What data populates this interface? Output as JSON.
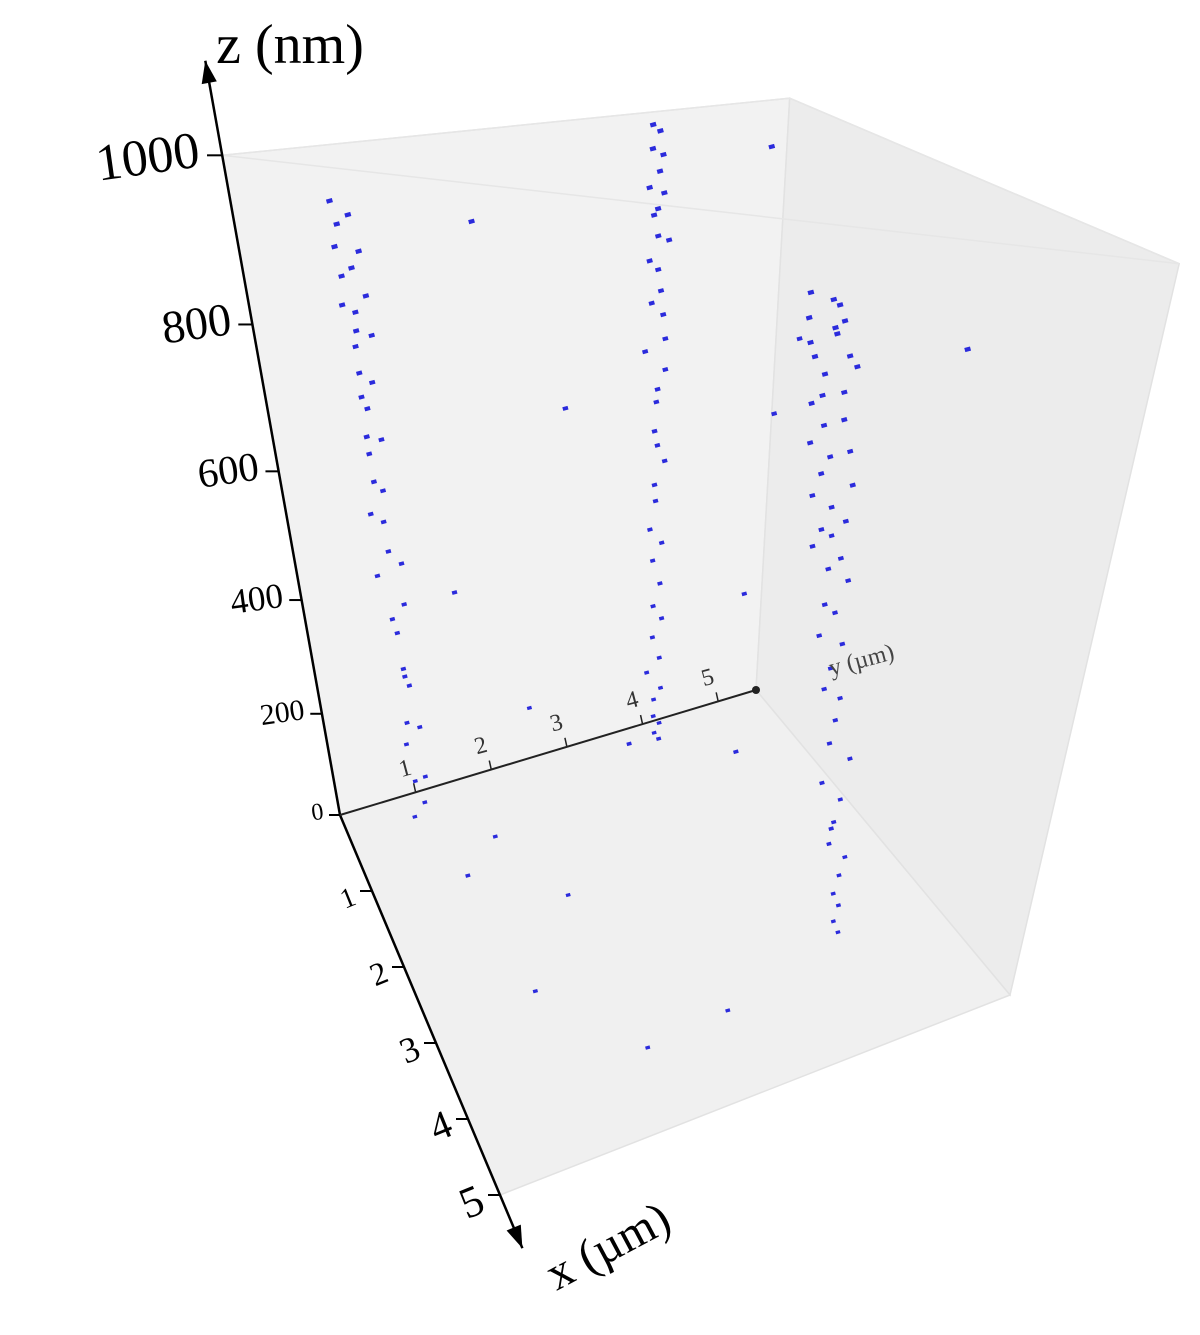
{
  "chart_data": {
    "type": "scatter3d",
    "zlabel": "z (nm)",
    "xlabel": "x (µm)",
    "ylabel": "y (µm)",
    "xlim": [
      0,
      5
    ],
    "ylim": [
      0,
      5.5
    ],
    "zlim": [
      0,
      1000
    ],
    "xticks": [
      1,
      2,
      3,
      4,
      5
    ],
    "yticks": [
      1,
      2,
      3,
      4,
      5
    ],
    "zticks": [
      0,
      200,
      400,
      600,
      800,
      1000
    ],
    "series": [
      {
        "color": "#2b2bdc",
        "x": [
          0.35,
          0.42,
          0.28,
          0.51,
          0.38,
          0.45,
          0.31,
          0.55,
          0.4,
          0.33,
          0.47,
          0.36,
          0.29,
          0.52,
          0.44,
          0.39,
          0.34,
          0.58,
          0.41,
          0.3,
          0.49,
          0.37,
          0.43,
          0.32,
          0.54,
          0.46,
          0.27,
          0.5,
          0.4,
          0.35,
          0.62,
          0.48,
          0.38,
          0.56,
          0.44,
          0.33,
          0.6,
          0.42,
          0.52,
          0.47,
          0.3,
          0.25,
          0.38,
          0.22,
          0.33,
          0.41,
          0.27,
          0.35,
          0.2,
          0.44,
          0.29,
          0.36,
          0.24,
          0.39,
          0.31,
          0.28,
          0.42,
          0.26,
          0.34,
          0.37,
          0.23,
          0.4,
          0.32,
          0.29,
          0.35,
          0.27,
          0.38,
          0.31,
          0.25,
          0.33,
          0.36,
          0.3,
          0.28,
          0.34,
          0.26,
          0.32,
          0.29,
          0.35,
          0.31,
          0.27,
          2.25,
          2.45,
          2.2,
          2.38,
          2.52,
          2.28,
          2.4,
          2.33,
          2.55,
          2.3,
          2.47,
          2.36,
          2.6,
          2.42,
          2.35,
          2.58,
          2.44,
          2.5,
          2.62,
          2.48,
          2.55,
          2.66,
          2.52,
          2.6,
          2.7,
          2.58,
          2.65,
          2.74,
          2.68,
          2.72,
          2.8,
          2.76,
          2.85,
          2.82,
          2.9,
          2.95,
          2.92,
          3.0,
          3.05,
          3.1,
          3.08,
          3.15,
          3.2,
          3.25,
          3.28,
          3.32,
          3.36,
          3.4,
          3.45,
          3.48,
          0.1,
          0.2,
          1.2,
          2.0,
          0.5,
          1.5,
          3.5,
          4.2,
          0.3,
          1.8,
          2.8,
          0.4,
          3.0,
          4.5,
          1.0,
          0.2,
          2.2,
          3.8,
          0.6,
          1.4
        ],
        "y": [
          0.82,
          0.95,
          0.88,
          0.76,
          1.02,
          0.91,
          0.85,
          0.98,
          0.79,
          0.93,
          0.87,
          1.05,
          0.9,
          0.83,
          0.97,
          0.86,
          0.92,
          0.8,
          1.0,
          0.89,
          0.84,
          0.96,
          0.78,
          0.94,
          0.88,
          1.03,
          0.81,
          0.99,
          0.87,
          0.92,
          0.85,
          0.9,
          0.97,
          0.83,
          1.01,
          0.86,
          0.95,
          0.88,
          0.93,
          0.8,
          3.95,
          4.05,
          3.9,
          4.1,
          4.0,
          3.85,
          4.08,
          3.97,
          4.02,
          3.92,
          4.12,
          3.88,
          4.04,
          3.98,
          3.93,
          4.07,
          4.01,
          3.89,
          4.06,
          3.96,
          4.03,
          3.91,
          3.99,
          4.09,
          3.94,
          4.0,
          3.87,
          4.05,
          3.98,
          4.02,
          3.92,
          4.06,
          3.96,
          4.01,
          3.9,
          4.04,
          3.97,
          3.93,
          4.03,
          3.99,
          4.3,
          4.45,
          4.55,
          4.22,
          4.38,
          4.62,
          4.48,
          4.28,
          4.52,
          4.35,
          4.65,
          4.42,
          4.26,
          4.58,
          4.32,
          4.5,
          4.4,
          4.24,
          4.56,
          4.46,
          4.34,
          4.59,
          4.29,
          4.44,
          4.53,
          4.37,
          4.25,
          4.49,
          4.41,
          4.6,
          4.33,
          4.47,
          4.27,
          4.54,
          4.39,
          4.31,
          4.51,
          4.43,
          4.36,
          4.57,
          4.3,
          4.48,
          4.4,
          4.34,
          4.52,
          4.45,
          4.38,
          4.43,
          4.36,
          4.41,
          2.5,
          5.2,
          1.5,
          2.0,
          5.4,
          3.0,
          1.0,
          2.8,
          3.0,
          5.0,
          3.5,
          1.6,
          5.3,
          1.8,
          4.6,
          2.2,
          0.8,
          4.0,
          5.1,
          3.4
        ],
        "z": [
          950,
          935,
          920,
          905,
          890,
          875,
          860,
          845,
          830,
          815,
          800,
          785,
          770,
          750,
          730,
          710,
          690,
          670,
          650,
          625,
          600,
          575,
          550,
          525,
          500,
          470,
          440,
          410,
          380,
          350,
          320,
          290,
          260,
          220,
          190,
          150,
          120,
          90,
          60,
          30,
          995,
          985,
          970,
          955,
          940,
          925,
          910,
          895,
          880,
          865,
          850,
          830,
          810,
          790,
          770,
          750,
          725,
          700,
          675,
          650,
          620,
          590,
          560,
          530,
          500,
          465,
          430,
          395,
          360,
          325,
          290,
          255,
          220,
          185,
          150,
          120,
          95,
          70,
          45,
          20,
          870,
          862,
          855,
          848,
          840,
          832,
          825,
          815,
          805,
          795,
          785,
          775,
          765,
          752,
          740,
          728,
          715,
          700,
          688,
          675,
          660,
          645,
          630,
          615,
          600,
          585,
          570,
          552,
          535,
          515,
          495,
          475,
          455,
          430,
          405,
          380,
          355,
          330,
          300,
          270,
          240,
          210,
          180,
          150,
          120,
          95,
          70,
          50,
          30,
          10,
          120,
          950,
          60,
          30,
          700,
          200,
          100,
          50,
          640,
          500,
          300,
          400,
          820,
          80,
          350,
          900,
          150,
          250,
          600,
          180
        ]
      }
    ]
  }
}
